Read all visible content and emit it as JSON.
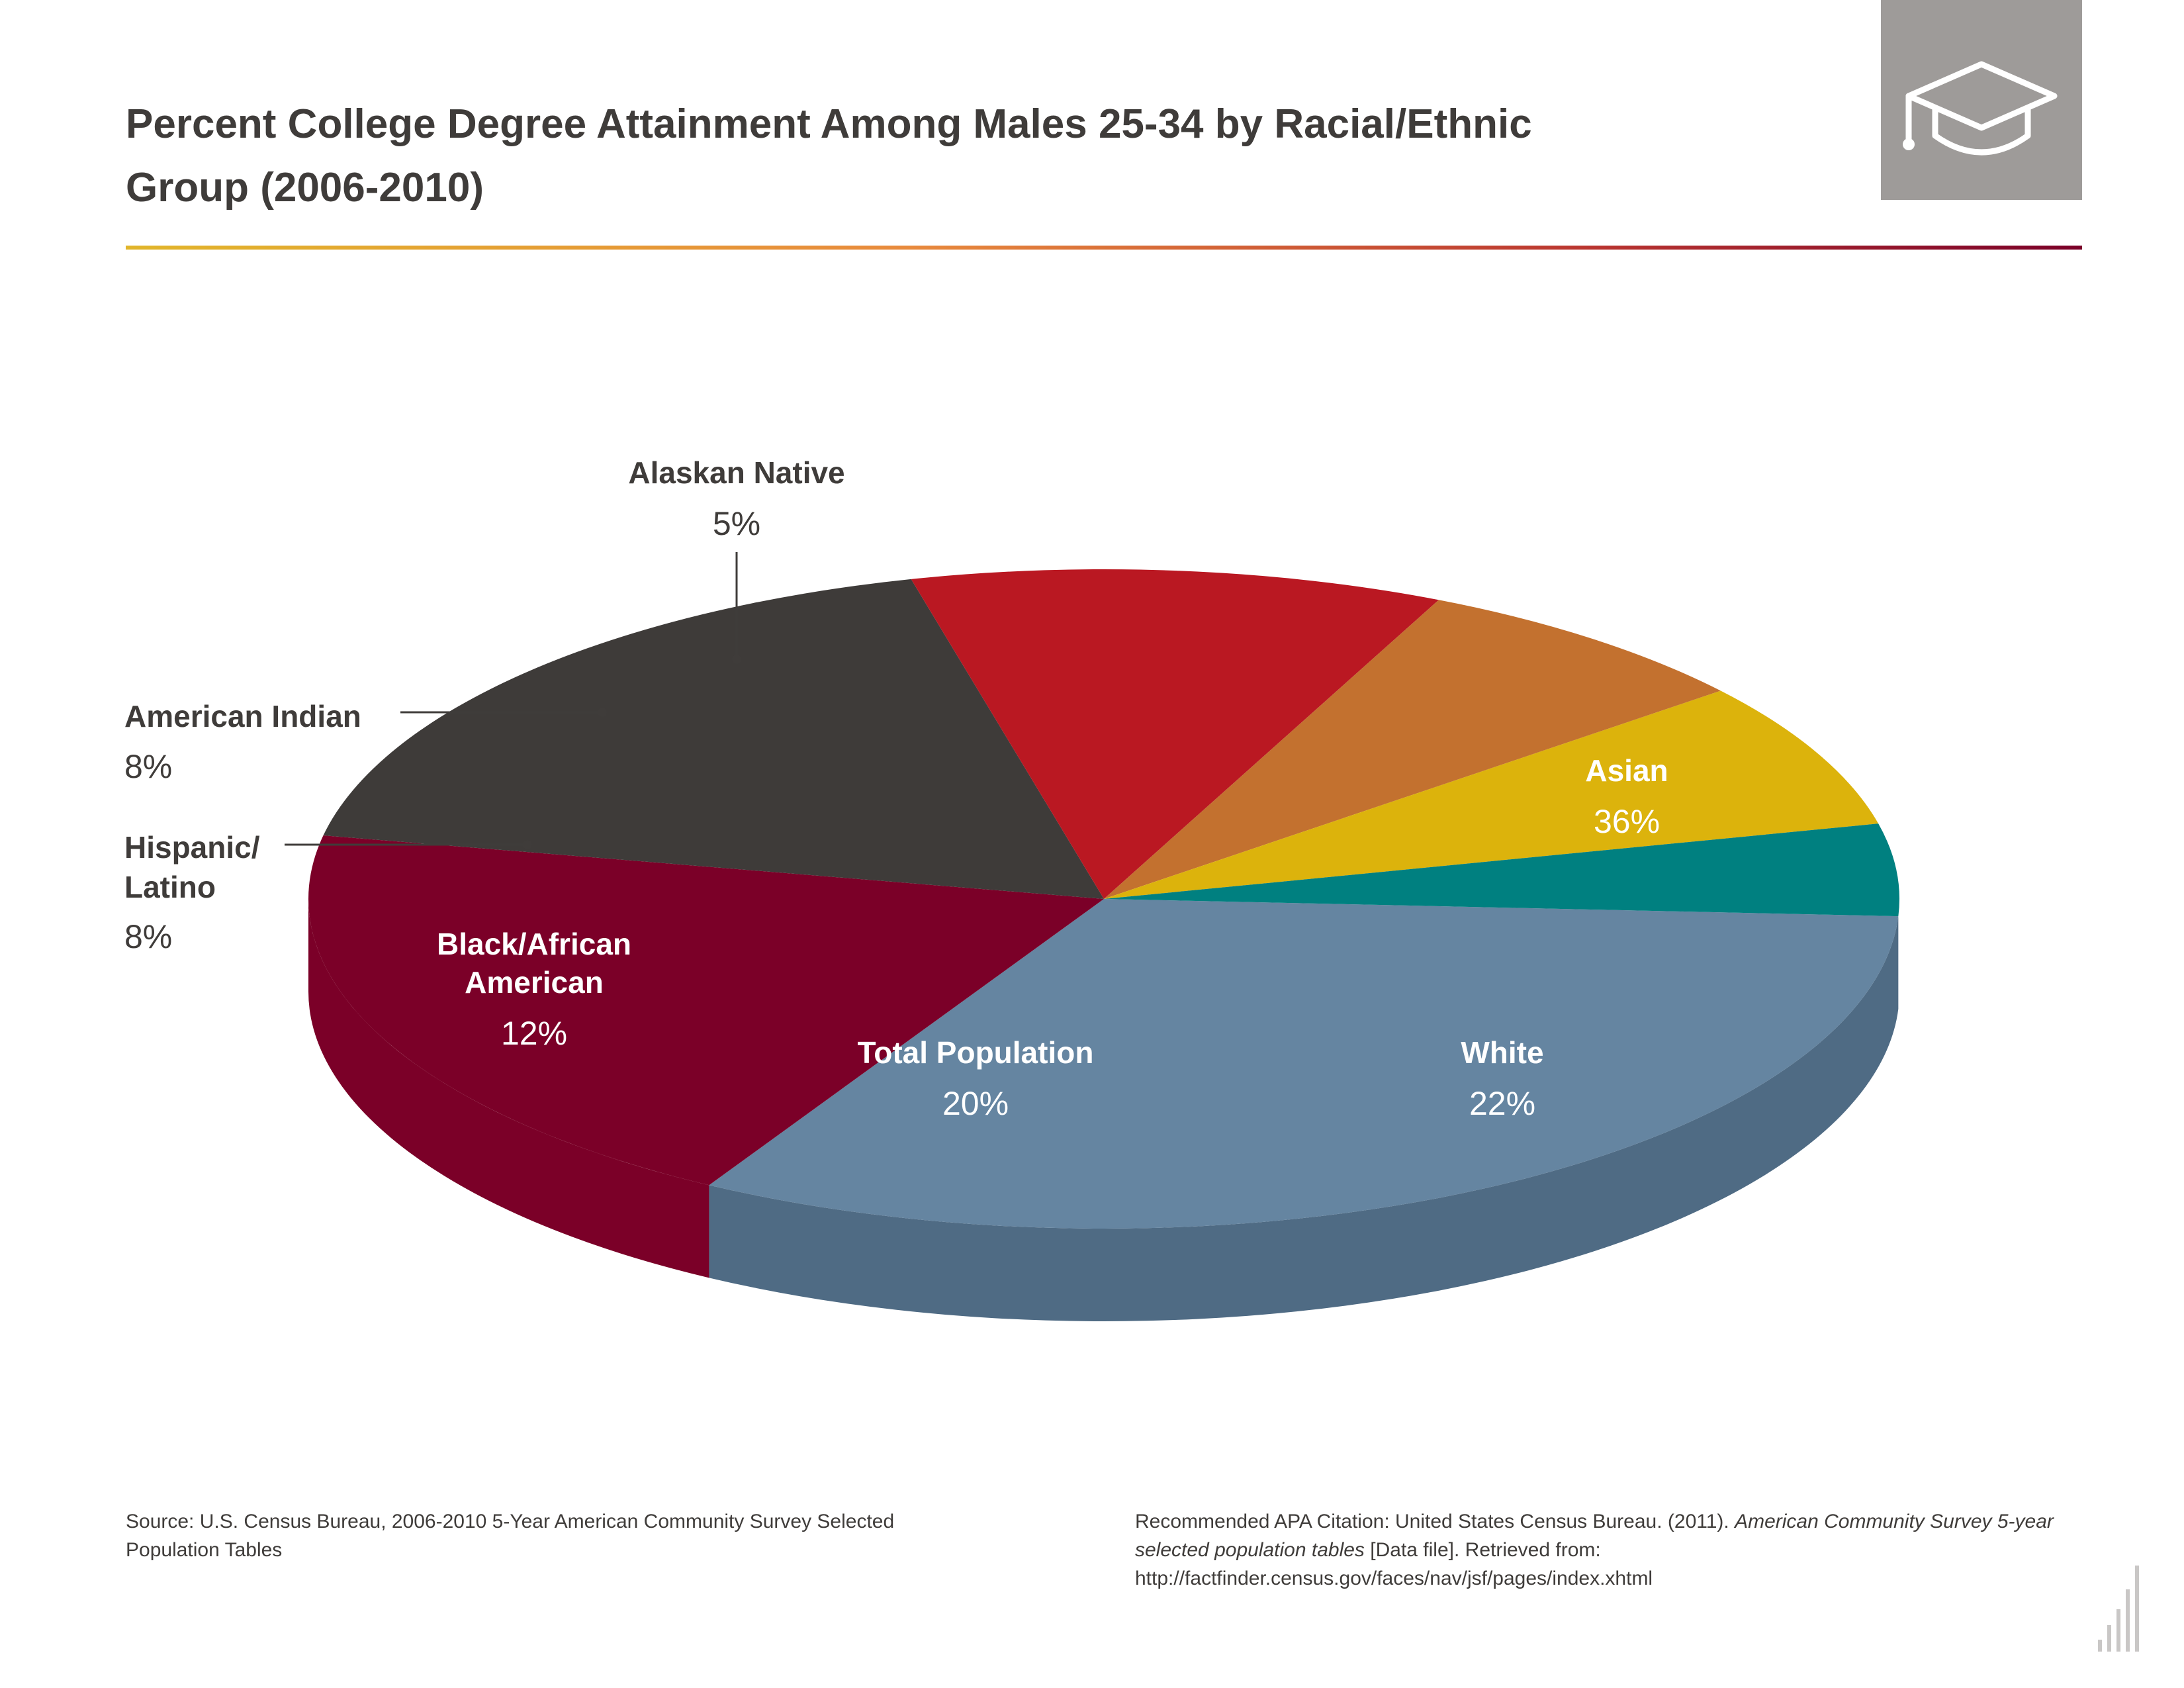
{
  "title": {
    "line1": "Percent College Degree Attainment Among Males 25-34 by Racial/Ethnic",
    "line2": "Group (2006-2010)"
  },
  "logo": {
    "icon": "graduation-cap-icon",
    "background": "#9e9b99"
  },
  "chart_data": {
    "type": "pie",
    "style": "3d-tilted",
    "slices": [
      {
        "name": "Asian",
        "value": 36,
        "value_label": "36%",
        "color": "#6585a1",
        "side_color": "#4f6b84",
        "label_placement": "inside"
      },
      {
        "name": "White",
        "value": 22,
        "value_label": "22%",
        "color": "#7b0028",
        "side_color": "#7b0028",
        "label_placement": "inside"
      },
      {
        "name": "Total Population",
        "value": 20,
        "value_label": "20%",
        "color": "#3e3b39",
        "side_color": "#3e3b39",
        "label_placement": "inside"
      },
      {
        "name": "Black/African American",
        "name_lines": [
          "Black/African",
          "American"
        ],
        "value": 12,
        "value_label": "12%",
        "color": "#ba1822",
        "side_color": "#910b14",
        "label_placement": "inside"
      },
      {
        "name": "Hispanic/ Latino",
        "name_lines": [
          "Hispanic/",
          "Latino"
        ],
        "value": 8,
        "value_label": "8%",
        "color": "#c3712f",
        "side_color": "#a85a22",
        "label_placement": "outside-left"
      },
      {
        "name": "American Indian",
        "name_lines": [
          "American Indian"
        ],
        "value": 8,
        "value_label": "8%",
        "color": "#dcb30c",
        "side_color": "#b8930a",
        "label_placement": "outside-left"
      },
      {
        "name": "Alaskan Native",
        "name_lines": [
          "Alaskan Native"
        ],
        "value": 5,
        "value_label": "5%",
        "color": "#008080",
        "side_color": "#006464",
        "label_placement": "outside-top"
      }
    ]
  },
  "footer": {
    "source": "Source: U.S. Census Bureau, 2006-2010 5-Year American Community Survey Selected Population Tables",
    "citation_prefix": "Recommended APA Citation: United States Census Bureau. (2011). ",
    "citation_title": "American Community Survey 5-year selected population tables",
    "citation_suffix": " [Data file]. Retrieved from: http://factfinder.census.gov/faces/nav/jsf/pages/index.xhtml"
  },
  "brand_mark": {
    "icon": "bar-chart-logo-icon"
  }
}
